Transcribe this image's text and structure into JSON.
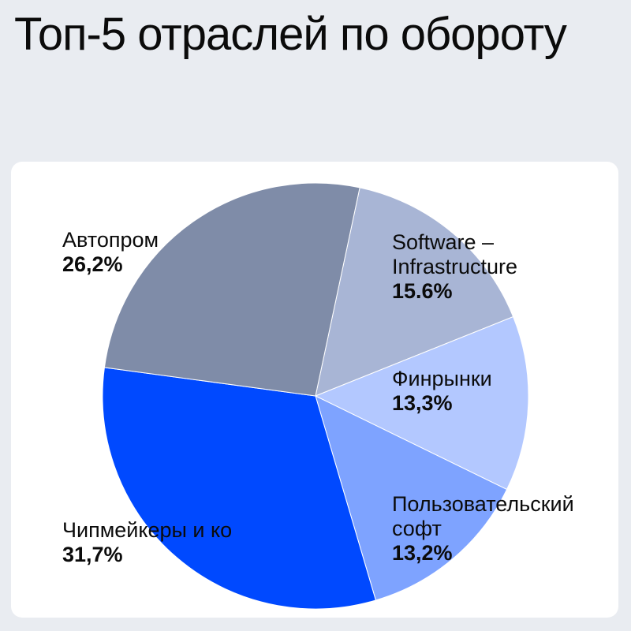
{
  "title": "Топ-5 отраслей по обороту",
  "chart_data": {
    "type": "pie",
    "title": "Топ-5 отраслей по обороту",
    "slices": [
      {
        "label": [
          "Software –",
          "Infrastructure"
        ],
        "value_label": "15.6%",
        "value": 15.6,
        "color": "#A8B5D5"
      },
      {
        "label": [
          "Финрынки"
        ],
        "value_label": "13,3%",
        "value": 13.3,
        "color": "#B3C8FF"
      },
      {
        "label": [
          "Пользовательский",
          "софт"
        ],
        "value_label": "13,2%",
        "value": 13.2,
        "color": "#7EA3FF"
      },
      {
        "label": [
          "Чипмейкеры и ко"
        ],
        "value_label": "31,7%",
        "value": 31.7,
        "color": "#0049FF"
      },
      {
        "label": [
          "Автопром"
        ],
        "value_label": "26,2%",
        "value": 26.2,
        "color": "#7F8CA8"
      }
    ]
  }
}
